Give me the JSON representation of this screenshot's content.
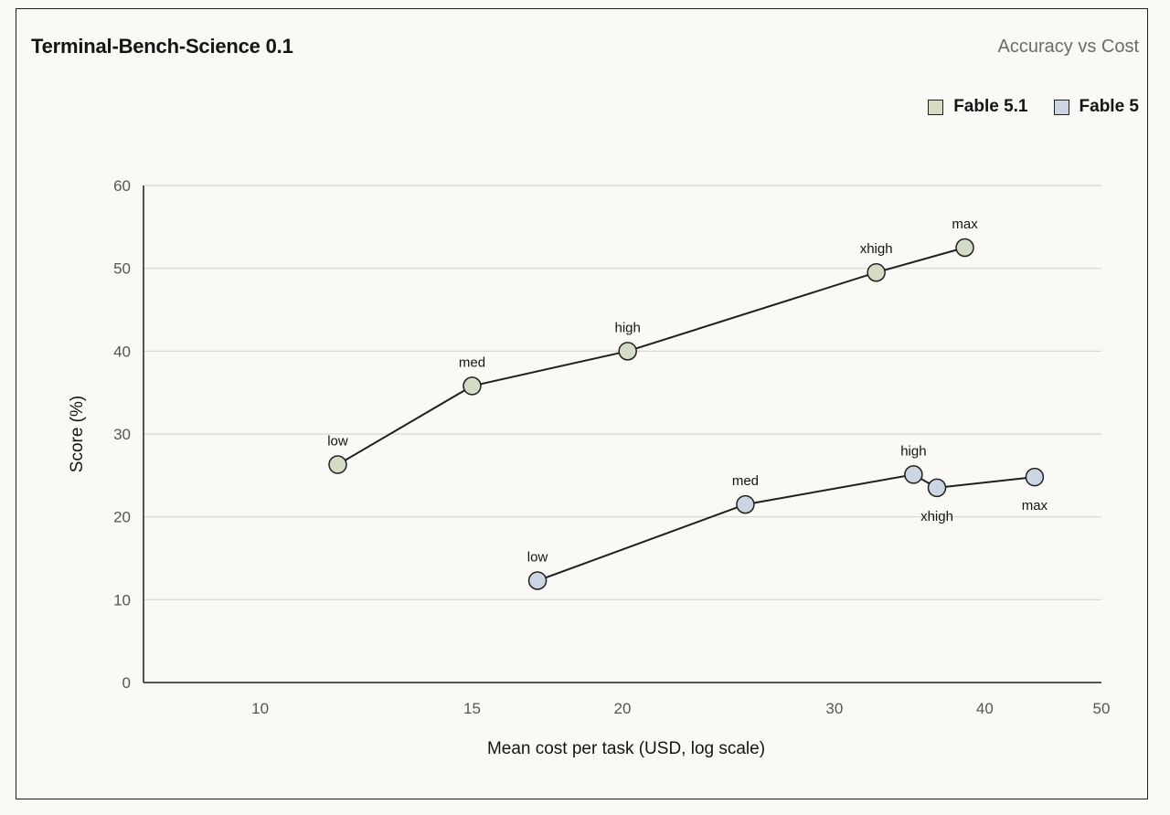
{
  "chart_data": {
    "type": "line",
    "title": "Terminal-Bench-Science 0.1",
    "subtitle": "Accuracy vs Cost",
    "xlabel": "Mean cost per task (USD, log scale)",
    "ylabel": "Score (%)",
    "x_scale": "log",
    "xlim": [
      8,
      50
    ],
    "ylim": [
      0,
      60
    ],
    "x_ticks": [
      10,
      15,
      20,
      30,
      40,
      50
    ],
    "y_ticks": [
      0,
      10,
      20,
      30,
      40,
      50,
      60
    ],
    "grid": "horizontal",
    "legend_position": "top-right",
    "series": [
      {
        "name": "Fable 5.1",
        "color": "#d4dcc6",
        "points": [
          {
            "label": "low",
            "x": 11.6,
            "y": 26.3,
            "label_pos": "above"
          },
          {
            "label": "med",
            "x": 15.0,
            "y": 35.8,
            "label_pos": "above"
          },
          {
            "label": "high",
            "x": 20.2,
            "y": 40.0,
            "label_pos": "above"
          },
          {
            "label": "xhigh",
            "x": 32.5,
            "y": 49.5,
            "label_pos": "above"
          },
          {
            "label": "max",
            "x": 38.5,
            "y": 52.5,
            "label_pos": "above"
          }
        ]
      },
      {
        "name": "Fable 5",
        "color": "#ccd6e3",
        "points": [
          {
            "label": "low",
            "x": 17.0,
            "y": 12.3,
            "label_pos": "above"
          },
          {
            "label": "med",
            "x": 25.3,
            "y": 21.5,
            "label_pos": "above"
          },
          {
            "label": "high",
            "x": 34.9,
            "y": 25.1,
            "label_pos": "above"
          },
          {
            "label": "xhigh",
            "x": 36.5,
            "y": 23.5,
            "label_pos": "below"
          },
          {
            "label": "max",
            "x": 44.0,
            "y": 24.8,
            "label_pos": "below"
          }
        ]
      }
    ]
  }
}
